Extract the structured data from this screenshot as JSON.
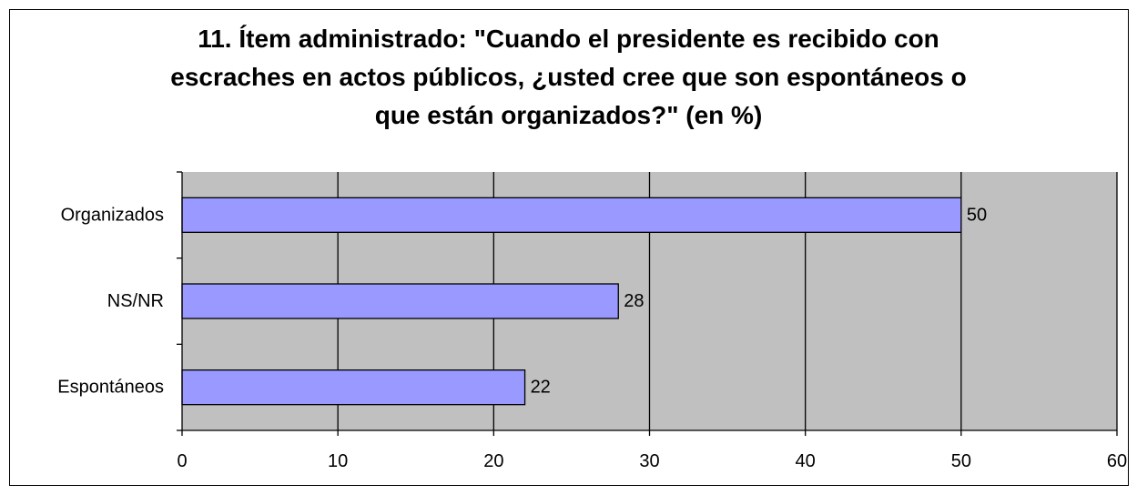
{
  "chart_data": {
    "type": "bar",
    "orientation": "horizontal",
    "title": "11. Ítem administrado: \"Cuando el presidente es recibido con\nescraches en actos públicos, ¿usted cree que son  espontáneos o\nque están organizados?\" (en %)",
    "categories": [
      "Organizados",
      "NS/NR",
      "Espontáneos"
    ],
    "values": [
      50,
      28,
      22
    ],
    "data_labels": [
      "50",
      "28",
      "22"
    ],
    "xlim": [
      0,
      60
    ],
    "x_ticks": [
      "0",
      "10",
      "20",
      "30",
      "40",
      "50",
      "60"
    ],
    "grid": true,
    "legend": "none",
    "colors": {
      "bar": "#9999ff",
      "plot_background": "#c0c0c0",
      "gridline": "#000000"
    }
  }
}
